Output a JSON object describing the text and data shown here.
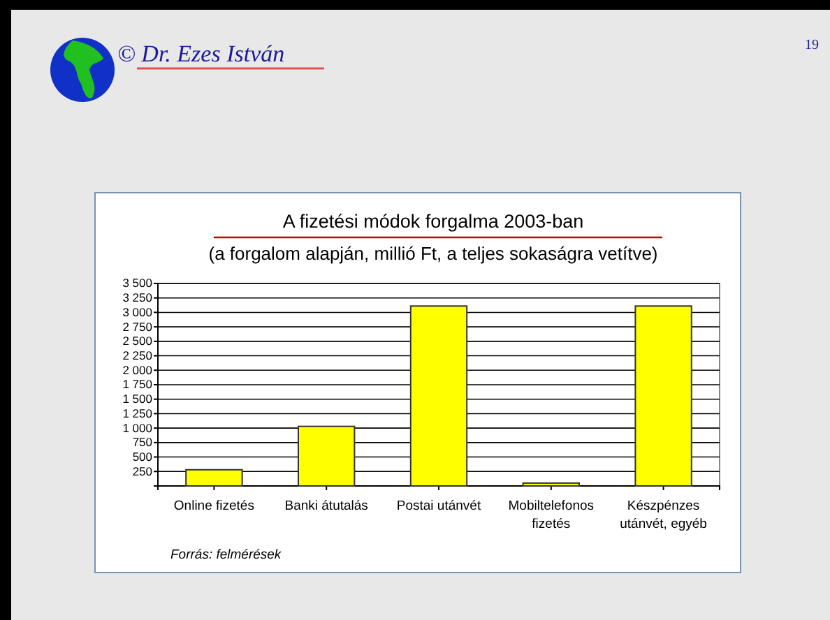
{
  "chart_data": {
    "type": "bar",
    "title": "A fizetési módok forgalma 2003-ban",
    "subtitle": "(a forgalom alapján, millió Ft, a teljes sokaságra vetítve)",
    "categories": [
      "Online fizetés",
      "Banki átutalás",
      "Postai utánvét",
      "Mobiltelefonos fizetés",
      "Készpénzes utánvét, egyéb"
    ],
    "values": [
      280,
      1030,
      3110,
      50,
      3110
    ],
    "color": "#ffff00",
    "ylim": [
      0,
      3500
    ],
    "yticks": [
      {
        "value": 250,
        "label": "250"
      },
      {
        "value": 500,
        "label": "500"
      },
      {
        "value": 750,
        "label": "750"
      },
      {
        "value": 1000,
        "label": "1 000"
      },
      {
        "value": 1250,
        "label": "1 250"
      },
      {
        "value": 1500,
        "label": "1 500"
      },
      {
        "value": 1750,
        "label": "1 750"
      },
      {
        "value": 2000,
        "label": "2 000"
      },
      {
        "value": 2250,
        "label": "2 250"
      },
      {
        "value": 2500,
        "label": "2 500"
      },
      {
        "value": 2750,
        "label": "2 750"
      },
      {
        "value": 3000,
        "label": "3 000"
      },
      {
        "value": 3250,
        "label": "3 250"
      },
      {
        "value": 3500,
        "label": "3 500"
      }
    ],
    "grid": "y",
    "annotations": [
      "© Dr. Ezes István",
      "19",
      "Forrás: felmérések"
    ]
  }
}
